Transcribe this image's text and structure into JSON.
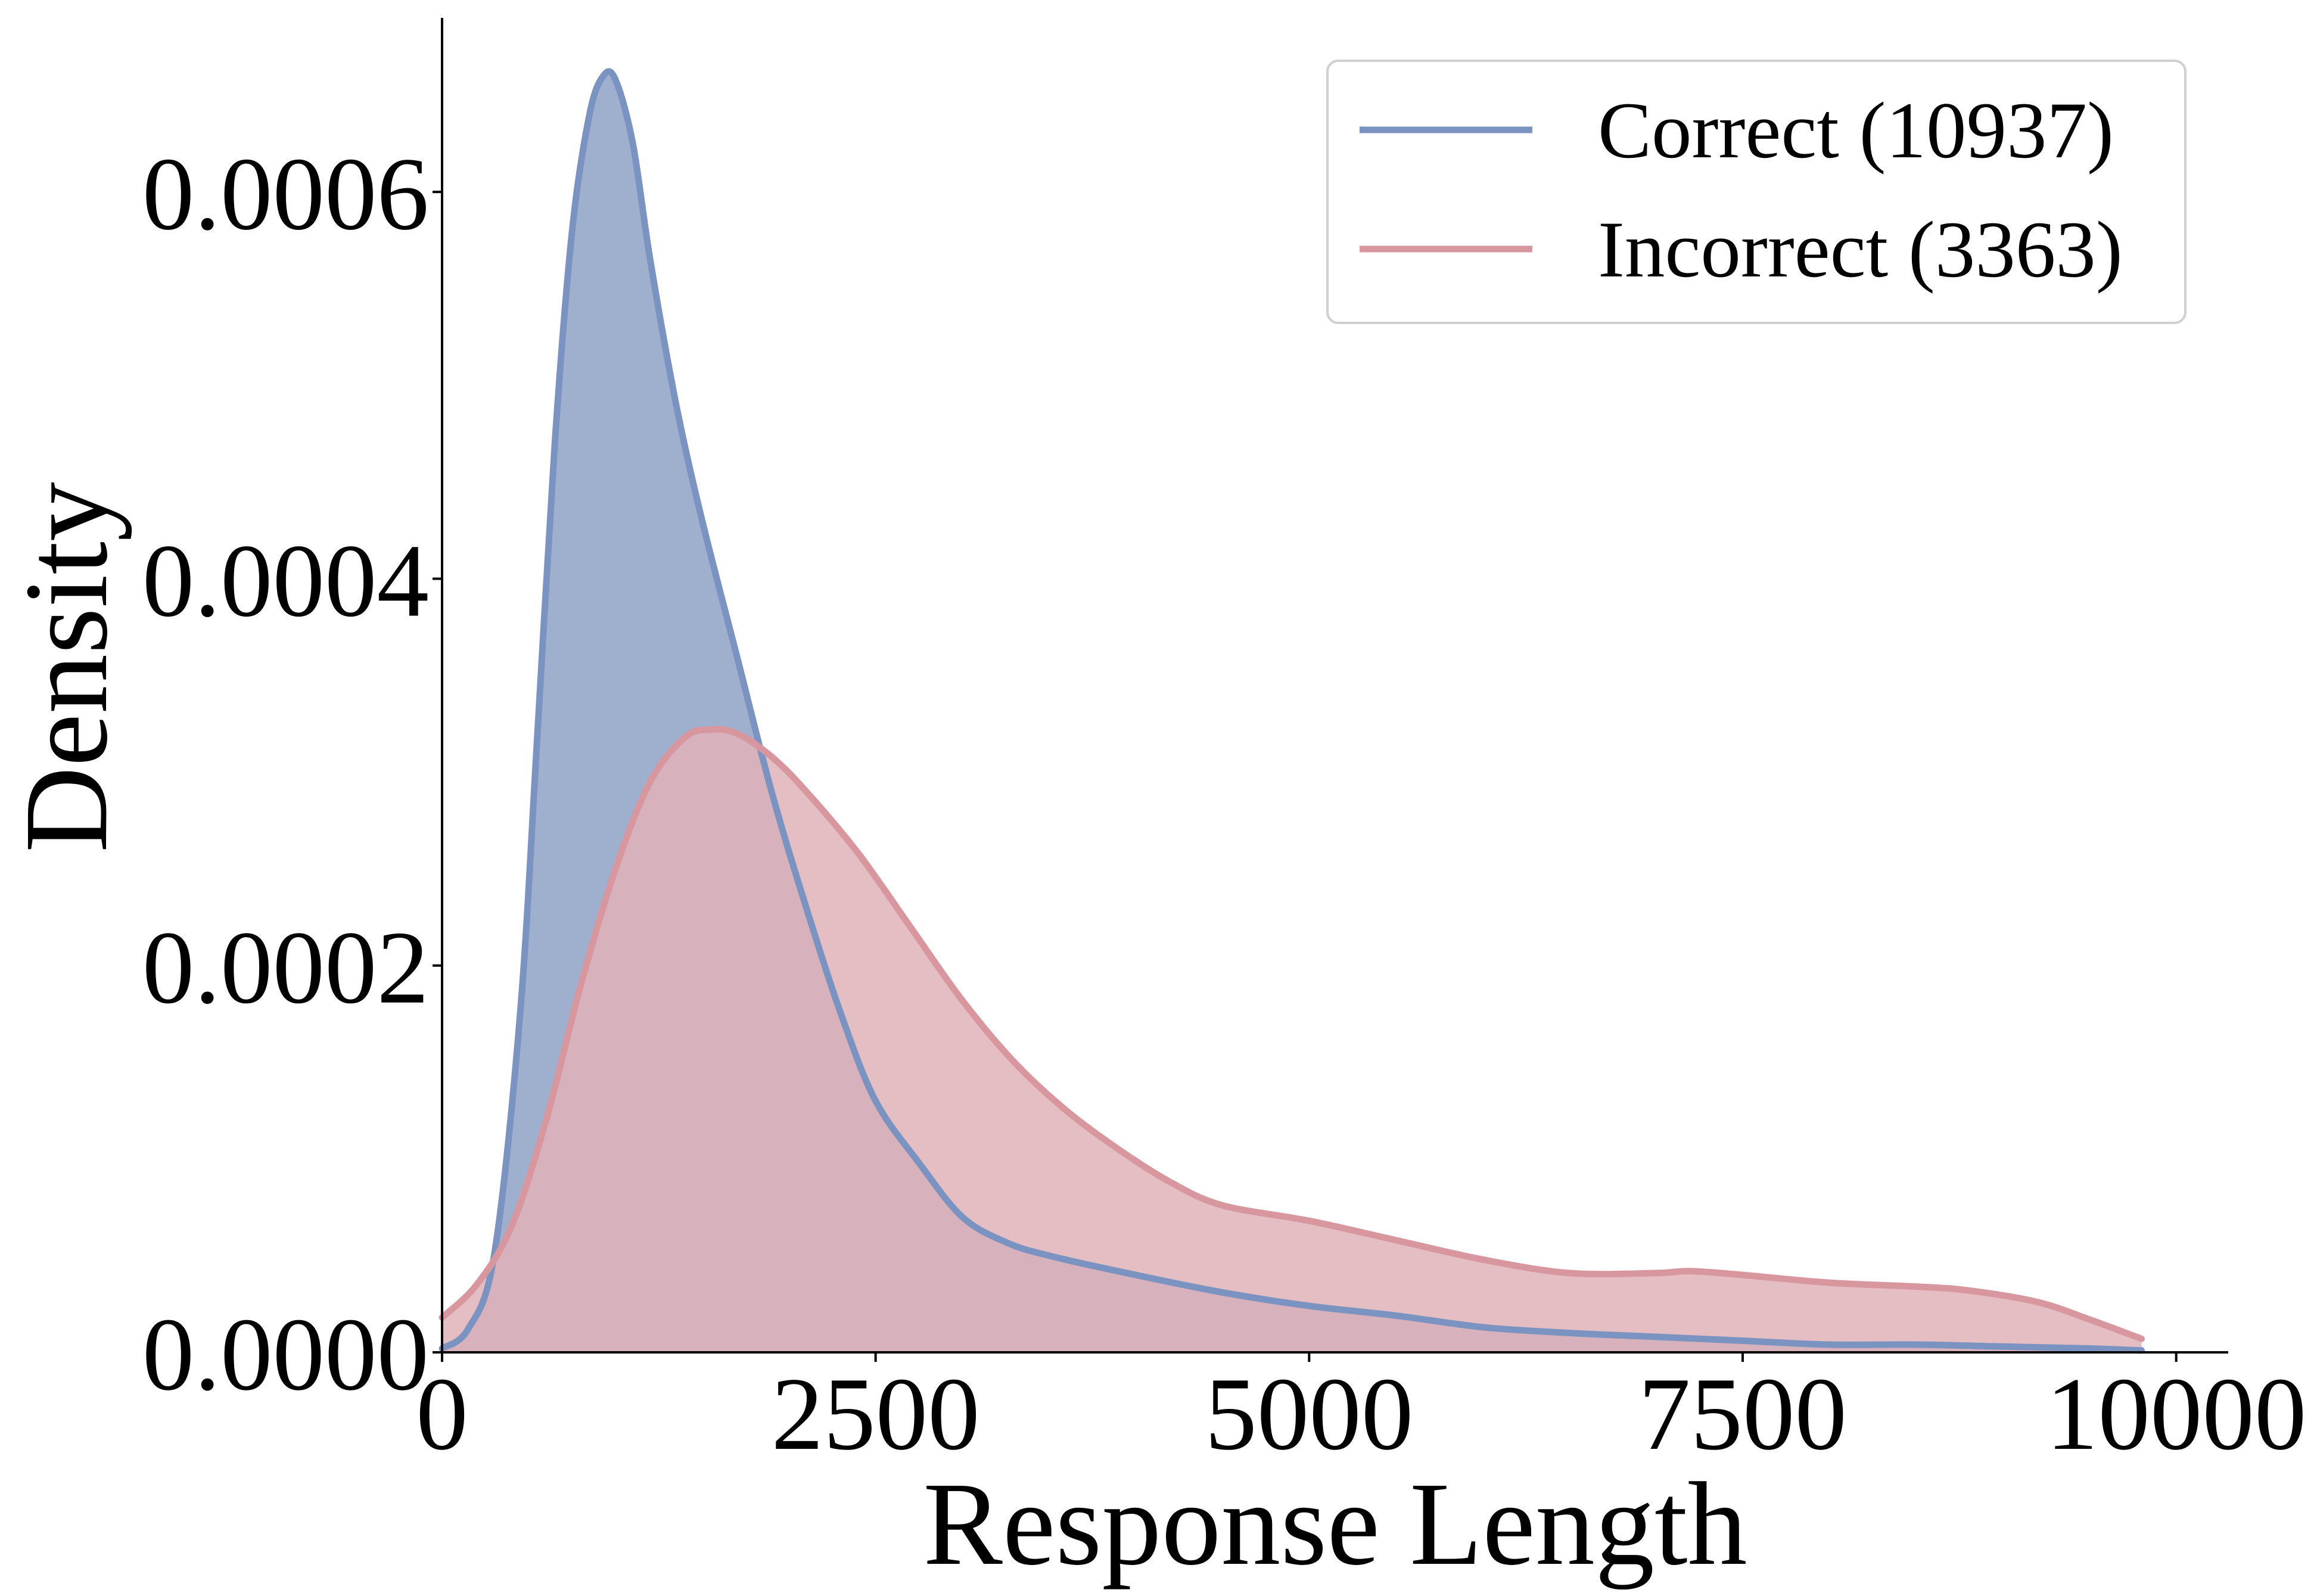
{
  "chart_data": {
    "type": "area",
    "title": "",
    "xlabel": "Response Length",
    "ylabel": "Density",
    "xlim": [
      0,
      10300
    ],
    "ylim": [
      0,
      0.00069
    ],
    "xticks": [
      0,
      2500,
      5000,
      7500,
      10000
    ],
    "xtick_labels": [
      "0",
      "2500",
      "5000",
      "7500",
      "10000"
    ],
    "yticks": [
      0,
      0.0002,
      0.0004,
      0.0006
    ],
    "ytick_labels": [
      "0.0000",
      "0.0002",
      "0.0004",
      "0.0006"
    ],
    "grid": false,
    "legend_position": "top-right",
    "series": [
      {
        "name": "Correct (10937)",
        "color": "#7b93c0",
        "fill_color": "#9fb0cf",
        "points": [
          [
            0,
            2e-06
          ],
          [
            150,
            1.2e-05
          ],
          [
            300,
            5e-05
          ],
          [
            450,
            0.000175
          ],
          [
            550,
            0.00032
          ],
          [
            650,
            0.00047
          ],
          [
            750,
            0.00058
          ],
          [
            850,
            0.00064
          ],
          [
            930,
            0.00066
          ],
          [
            1000,
            0.000658
          ],
          [
            1100,
            0.000625
          ],
          [
            1200,
            0.000565
          ],
          [
            1350,
            0.00049
          ],
          [
            1500,
            0.00043
          ],
          [
            1700,
            0.00036
          ],
          [
            1900,
            0.00029
          ],
          [
            2100,
            0.00023
          ],
          [
            2300,
            0.000175
          ],
          [
            2500,
            0.00013
          ],
          [
            2750,
            9.8e-05
          ],
          [
            3000,
            7e-05
          ],
          [
            3250,
            5.7e-05
          ],
          [
            3500,
            5e-05
          ],
          [
            4000,
            4e-05
          ],
          [
            4500,
            3.1e-05
          ],
          [
            5000,
            2.4e-05
          ],
          [
            5500,
            1.9e-05
          ],
          [
            6000,
            1.3e-05
          ],
          [
            6500,
            1e-05
          ],
          [
            7000,
            8e-06
          ],
          [
            7500,
            6e-06
          ],
          [
            8000,
            4e-06
          ],
          [
            8500,
            4e-06
          ],
          [
            9000,
            3e-06
          ],
          [
            9500,
            2e-06
          ],
          [
            9800,
            1e-06
          ]
        ]
      },
      {
        "name": "Incorrect (3363)",
        "color": "#d8979f",
        "fill_color": "#e1b3ba",
        "points": [
          [
            0,
            1.8e-05
          ],
          [
            200,
            3.5e-05
          ],
          [
            400,
            6.5e-05
          ],
          [
            600,
            0.00012
          ],
          [
            800,
            0.00019
          ],
          [
            1000,
            0.00025
          ],
          [
            1200,
            0.000295
          ],
          [
            1400,
            0.000318
          ],
          [
            1550,
            0.000322
          ],
          [
            1700,
            0.00032
          ],
          [
            1900,
            0.000308
          ],
          [
            2100,
            0.00029
          ],
          [
            2400,
            0.000258
          ],
          [
            2700,
            0.00022
          ],
          [
            3000,
            0.000182
          ],
          [
            3300,
            0.00015
          ],
          [
            3600,
            0.000125
          ],
          [
            3900,
            0.000105
          ],
          [
            4200,
            8.8e-05
          ],
          [
            4500,
            7.6e-05
          ],
          [
            5000,
            6.8e-05
          ],
          [
            5500,
            5.8e-05
          ],
          [
            6000,
            4.8e-05
          ],
          [
            6500,
            4.1e-05
          ],
          [
            7000,
            4.1e-05
          ],
          [
            7200,
            4.2e-05
          ],
          [
            7500,
            4e-05
          ],
          [
            8000,
            3.6e-05
          ],
          [
            8500,
            3.4e-05
          ],
          [
            8800,
            3.2e-05
          ],
          [
            9200,
            2.6e-05
          ],
          [
            9500,
            1.7e-05
          ],
          [
            9800,
            7e-06
          ]
        ]
      }
    ]
  }
}
